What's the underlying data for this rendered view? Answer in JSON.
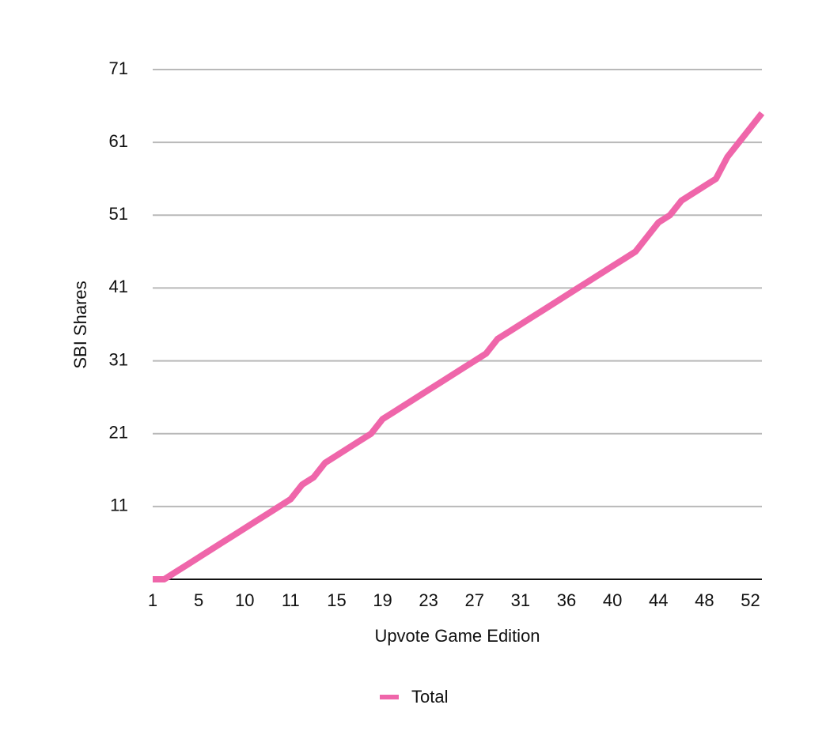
{
  "chart_data": {
    "type": "line",
    "x_label": "Upvote Game Edition",
    "y_label": "SBI Shares",
    "categories": [
      "1",
      null,
      null,
      null,
      "5",
      null,
      null,
      null,
      "10",
      null,
      null,
      null,
      "11",
      null,
      null,
      null,
      "15",
      null,
      null,
      null,
      "19",
      null,
      null,
      null,
      "23",
      null,
      null,
      null,
      "27",
      null,
      null,
      null,
      "31",
      null,
      null,
      null,
      "36",
      null,
      null,
      null,
      "40",
      null,
      null,
      null,
      "44",
      null,
      null,
      null,
      "48",
      null,
      null,
      null,
      "52",
      null
    ],
    "series": [
      {
        "name": "Total",
        "color": "#ef66aa",
        "values": [
          1,
          1,
          2,
          3,
          4,
          5,
          6,
          7,
          8,
          9,
          10,
          11,
          12,
          14,
          15,
          17,
          18,
          19,
          20,
          21,
          23,
          24,
          25,
          26,
          27,
          28,
          29,
          30,
          31,
          32,
          34,
          35,
          36,
          37,
          38,
          39,
          40,
          41,
          42,
          43,
          44,
          45,
          46,
          48,
          50,
          51,
          53,
          54,
          55,
          56,
          59,
          61,
          63,
          65
        ]
      }
    ],
    "ylim": [
      1,
      71
    ],
    "yticks": [
      11,
      21,
      31,
      41,
      51,
      61,
      71
    ],
    "grid": true,
    "legend": "bottom"
  }
}
